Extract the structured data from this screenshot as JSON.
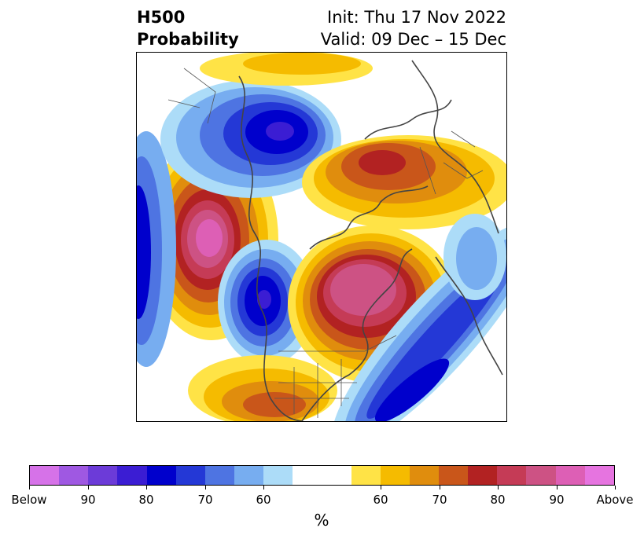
{
  "header": {
    "title_line1": "H500",
    "title_line2": "Probability",
    "init_text": "Init: Thu 17 Nov 2022",
    "valid_text": "Valid: 09 Dec – 15 Dec"
  },
  "colorbar": {
    "colors": [
      "#d672e8",
      "#9f58e2",
      "#6c3bd8",
      "#3b1dd3",
      "#0000cc",
      "#2438d6",
      "#4e74e2",
      "#77adf0",
      "#acdcf8",
      "#ffffff",
      "#ffffff",
      "#ffe346",
      "#f5bb00",
      "#e08d0d",
      "#c9561a",
      "#b22222",
      "#c53b56",
      "#cd5284",
      "#dd5fb5",
      "#e674e0"
    ],
    "tick_labels": [
      "Below",
      "90",
      "80",
      "70",
      "60",
      "60",
      "70",
      "80",
      "90",
      "Above"
    ],
    "units": "%"
  },
  "map": {
    "projection": "north-polar-stereographic",
    "features": [
      "coastlines",
      "country-borders",
      "us-state-borders"
    ]
  }
}
